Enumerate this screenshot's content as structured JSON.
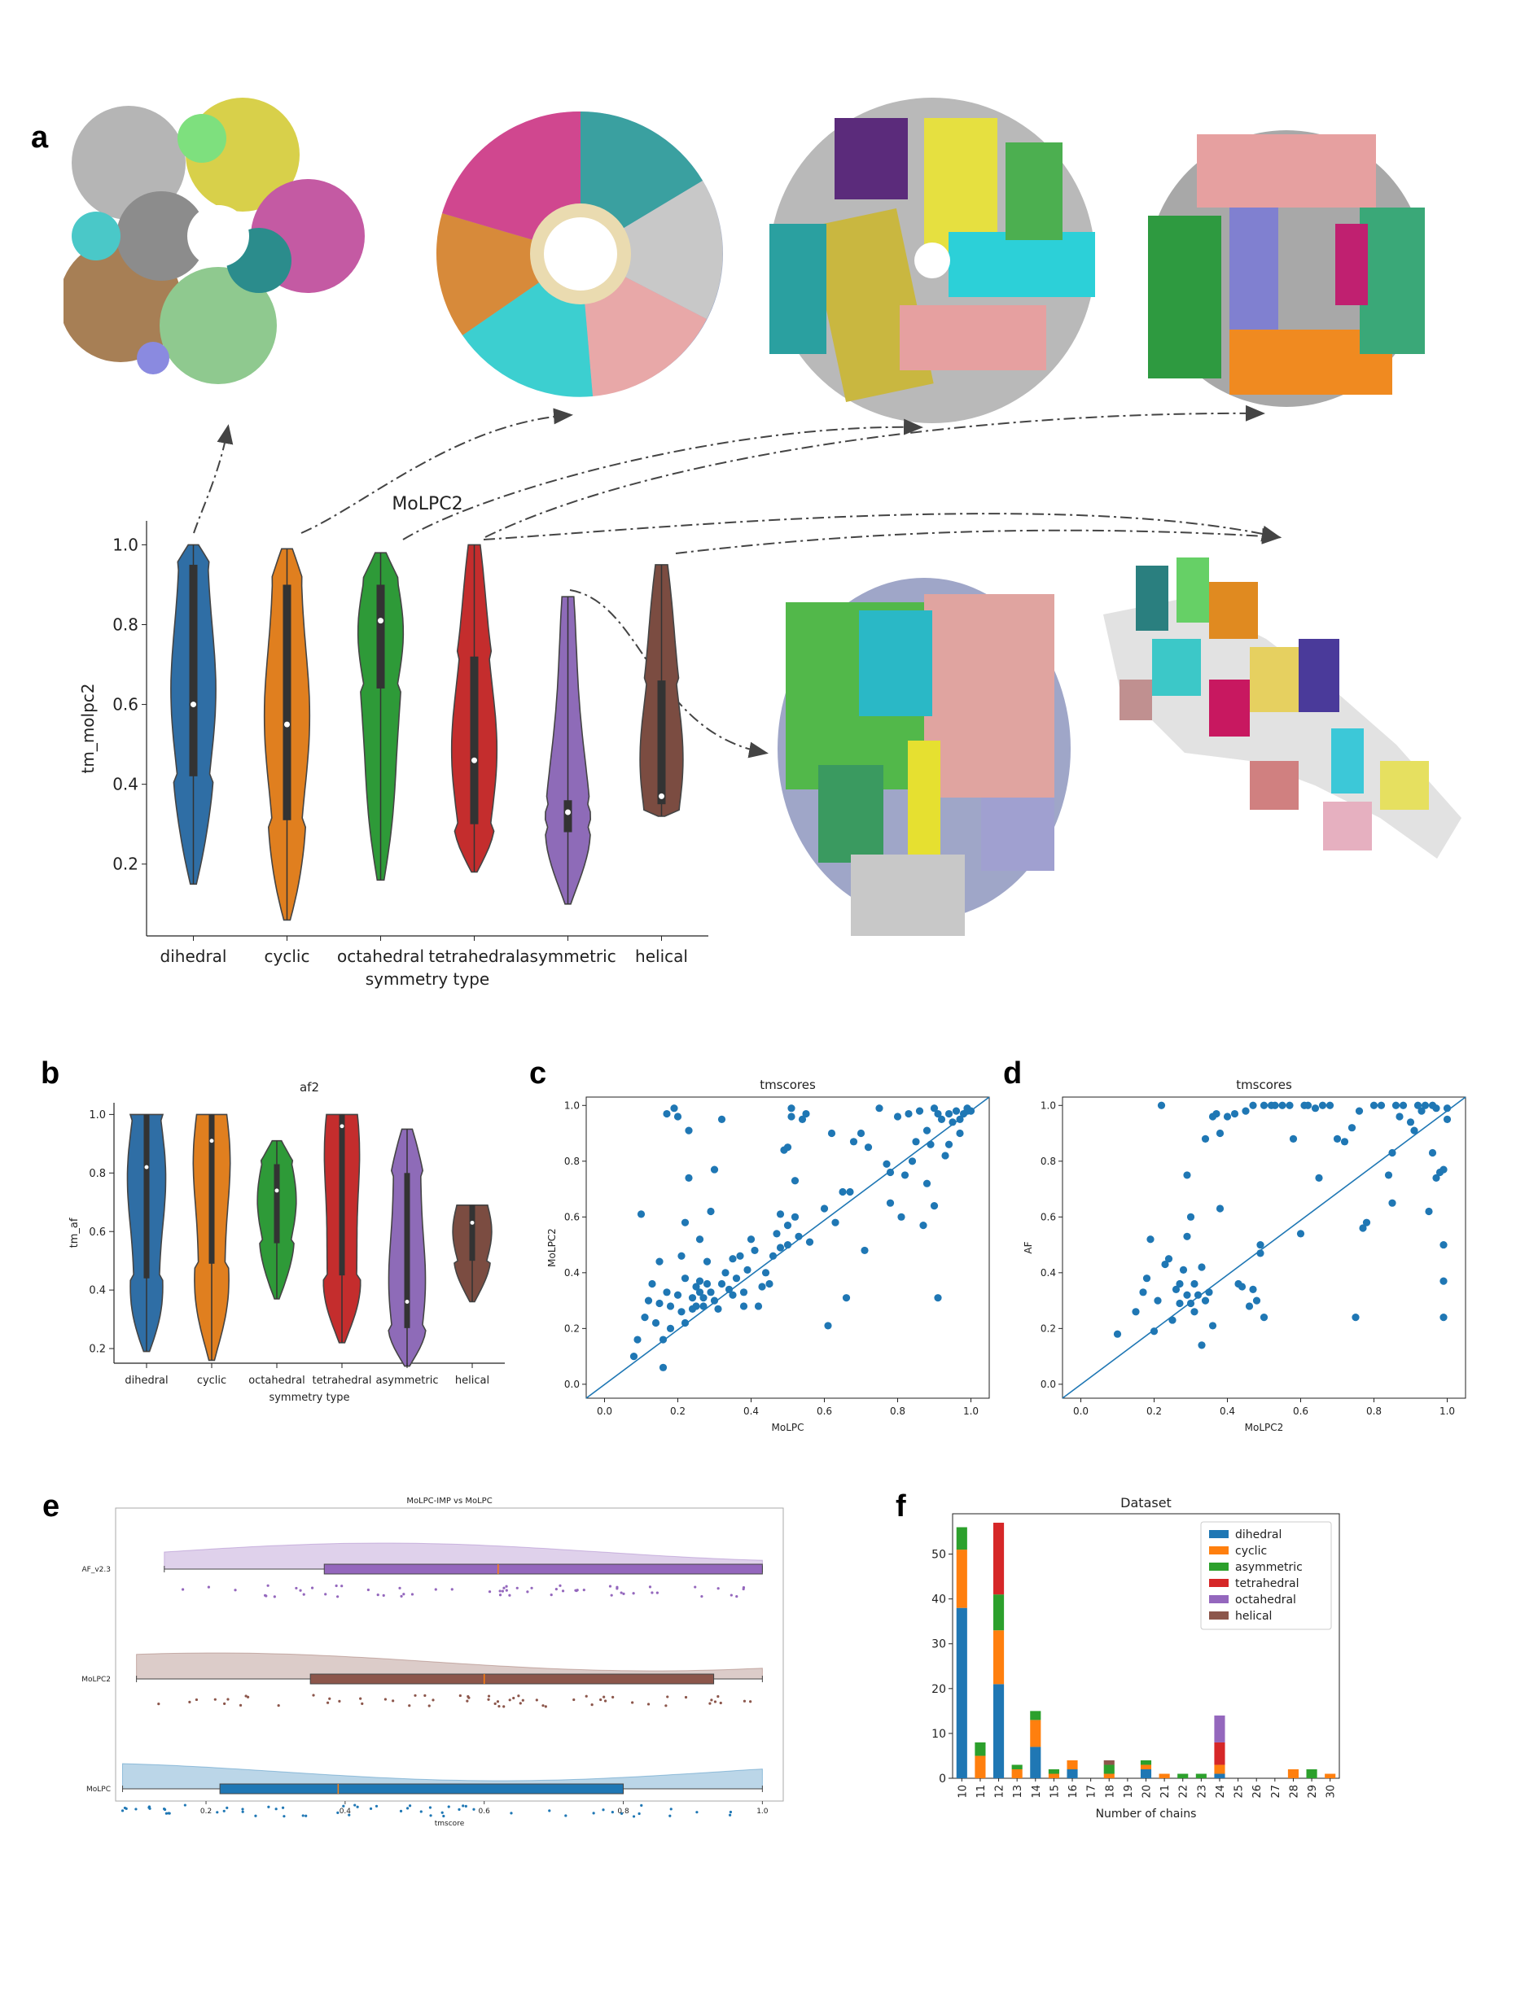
{
  "panels": {
    "a": "a",
    "b": "b",
    "c": "c",
    "d": "d",
    "e": "e",
    "f": "f"
  },
  "colors": {
    "dihedral": "#2f6ea5",
    "cyclic": "#e07f1f",
    "octahedral": "#2e9a38",
    "tetrahedral": "#c42d2d",
    "asymmetric": "#8e6bb8",
    "helical": "#7b4c41",
    "scatter": "#1f77b4",
    "bar_dihedral": "#1f77b4",
    "bar_cyclic": "#ff7f0e",
    "bar_asymmetric": "#2ca02c",
    "bar_tetrahedral": "#d62728",
    "bar_octahedral": "#9467bd",
    "bar_helical": "#8c564b",
    "e_af": "#9467bd",
    "e_molpc2": "#8c564b",
    "e_molpc": "#1f77b4"
  },
  "chart_data": [
    {
      "id": "a",
      "type": "violin",
      "title": "MoLPC2",
      "xlabel": "symmetry type",
      "ylabel": "tm_molpc2",
      "yticks": [
        "0.2",
        "0.4",
        "0.6",
        "0.8",
        "1.0"
      ],
      "ylim": [
        0.02,
        1.06
      ],
      "categories": [
        "dihedral",
        "cyclic",
        "octahedral",
        "tetrahedral",
        "asymmetric",
        "helical"
      ],
      "stats": [
        {
          "min": 0.15,
          "max": 1.0,
          "q1": 0.42,
          "median": 0.6,
          "q3": 0.95
        },
        {
          "min": 0.06,
          "max": 0.99,
          "q1": 0.31,
          "median": 0.55,
          "q3": 0.9
        },
        {
          "min": 0.16,
          "max": 0.98,
          "q1": 0.64,
          "median": 0.81,
          "q3": 0.9
        },
        {
          "min": 0.18,
          "max": 1.0,
          "q1": 0.3,
          "median": 0.46,
          "q3": 0.72
        },
        {
          "min": 0.1,
          "max": 0.87,
          "q1": 0.28,
          "median": 0.33,
          "q3": 0.36
        },
        {
          "min": 0.32,
          "max": 0.95,
          "q1": 0.35,
          "median": 0.37,
          "q3": 0.66
        }
      ]
    },
    {
      "id": "b",
      "type": "violin",
      "title": "af2",
      "xlabel": "symmetry type",
      "ylabel": "tm_af",
      "yticks": [
        "0.2",
        "0.4",
        "0.6",
        "0.8",
        "1.0"
      ],
      "ylim": [
        0.15,
        1.04
      ],
      "categories": [
        "dihedral",
        "cyclic",
        "octahedral",
        "tetrahedral",
        "asymmetric",
        "helical"
      ],
      "stats": [
        {
          "min": 0.19,
          "max": 1.0,
          "q1": 0.44,
          "median": 0.82,
          "q3": 1.0
        },
        {
          "min": 0.16,
          "max": 1.0,
          "q1": 0.49,
          "median": 0.91,
          "q3": 1.0
        },
        {
          "min": 0.37,
          "max": 0.91,
          "q1": 0.56,
          "median": 0.74,
          "q3": 0.83
        },
        {
          "min": 0.22,
          "max": 1.0,
          "q1": 0.45,
          "median": 0.96,
          "q3": 1.0
        },
        {
          "min": 0.14,
          "max": 0.95,
          "q1": 0.27,
          "median": 0.36,
          "q3": 0.8
        },
        {
          "min": 0.36,
          "max": 0.69,
          "q1": 0.5,
          "median": 0.63,
          "q3": 0.69
        }
      ]
    },
    {
      "id": "c",
      "type": "scatter",
      "title": "tmscores",
      "xlabel": "MoLPC",
      "ylabel": "MoLPC2",
      "xticks": [
        "0.0",
        "0.2",
        "0.4",
        "0.6",
        "0.8",
        "1.0"
      ],
      "yticks": [
        "0.0",
        "0.2",
        "0.4",
        "0.6",
        "0.8",
        "1.0"
      ],
      "xlim": [
        -0.05,
        1.05
      ],
      "ylim": [
        -0.05,
        1.03
      ],
      "diagonal": true,
      "points": [
        [
          0.08,
          0.1
        ],
        [
          0.09,
          0.16
        ],
        [
          0.1,
          0.61
        ],
        [
          0.11,
          0.24
        ],
        [
          0.12,
          0.3
        ],
        [
          0.13,
          0.36
        ],
        [
          0.14,
          0.22
        ],
        [
          0.15,
          0.29
        ],
        [
          0.15,
          0.44
        ],
        [
          0.16,
          0.16
        ],
        [
          0.16,
          0.06
        ],
        [
          0.17,
          0.33
        ],
        [
          0.17,
          0.97
        ],
        [
          0.18,
          0.2
        ],
        [
          0.18,
          0.28
        ],
        [
          0.19,
          0.99
        ],
        [
          0.2,
          0.32
        ],
        [
          0.2,
          0.96
        ],
        [
          0.21,
          0.26
        ],
        [
          0.21,
          0.46
        ],
        [
          0.22,
          0.22
        ],
        [
          0.22,
          0.38
        ],
        [
          0.22,
          0.58
        ],
        [
          0.23,
          0.74
        ],
        [
          0.23,
          0.91
        ],
        [
          0.24,
          0.27
        ],
        [
          0.24,
          0.31
        ],
        [
          0.25,
          0.35
        ],
        [
          0.25,
          0.28
        ],
        [
          0.26,
          0.33
        ],
        [
          0.26,
          0.52
        ],
        [
          0.26,
          0.37
        ],
        [
          0.27,
          0.31
        ],
        [
          0.27,
          0.28
        ],
        [
          0.28,
          0.36
        ],
        [
          0.28,
          0.44
        ],
        [
          0.29,
          0.33
        ],
        [
          0.29,
          0.62
        ],
        [
          0.3,
          0.77
        ],
        [
          0.3,
          0.3
        ],
        [
          0.31,
          0.27
        ],
        [
          0.32,
          0.36
        ],
        [
          0.32,
          0.95
        ],
        [
          0.33,
          0.4
        ],
        [
          0.34,
          0.34
        ],
        [
          0.35,
          0.45
        ],
        [
          0.35,
          0.32
        ],
        [
          0.36,
          0.38
        ],
        [
          0.37,
          0.46
        ],
        [
          0.38,
          0.33
        ],
        [
          0.38,
          0.28
        ],
        [
          0.39,
          0.41
        ],
        [
          0.4,
          0.52
        ],
        [
          0.41,
          0.48
        ],
        [
          0.42,
          0.28
        ],
        [
          0.43,
          0.35
        ],
        [
          0.44,
          0.4
        ],
        [
          0.45,
          0.36
        ],
        [
          0.46,
          0.46
        ],
        [
          0.47,
          0.54
        ],
        [
          0.48,
          0.49
        ],
        [
          0.48,
          0.61
        ],
        [
          0.49,
          0.84
        ],
        [
          0.5,
          0.5
        ],
        [
          0.5,
          0.57
        ],
        [
          0.5,
          0.85
        ],
        [
          0.51,
          0.96
        ],
        [
          0.51,
          0.99
        ],
        [
          0.52,
          0.6
        ],
        [
          0.52,
          0.73
        ],
        [
          0.53,
          0.53
        ],
        [
          0.54,
          0.95
        ],
        [
          0.55,
          0.97
        ],
        [
          0.56,
          0.51
        ],
        [
          0.6,
          0.63
        ],
        [
          0.61,
          0.21
        ],
        [
          0.62,
          0.9
        ],
        [
          0.63,
          0.58
        ],
        [
          0.65,
          0.69
        ],
        [
          0.66,
          0.31
        ],
        [
          0.67,
          0.69
        ],
        [
          0.68,
          0.87
        ],
        [
          0.7,
          0.9
        ],
        [
          0.71,
          0.48
        ],
        [
          0.72,
          0.85
        ],
        [
          0.75,
          0.99
        ],
        [
          0.77,
          0.79
        ],
        [
          0.78,
          0.76
        ],
        [
          0.78,
          0.65
        ],
        [
          0.8,
          0.96
        ],
        [
          0.81,
          0.6
        ],
        [
          0.82,
          0.75
        ],
        [
          0.83,
          0.97
        ],
        [
          0.84,
          0.8
        ],
        [
          0.85,
          0.87
        ],
        [
          0.86,
          0.98
        ],
        [
          0.87,
          0.57
        ],
        [
          0.88,
          0.72
        ],
        [
          0.88,
          0.91
        ],
        [
          0.89,
          0.86
        ],
        [
          0.9,
          0.64
        ],
        [
          0.9,
          0.99
        ],
        [
          0.91,
          0.97
        ],
        [
          0.91,
          0.31
        ],
        [
          0.92,
          0.95
        ],
        [
          0.93,
          0.82
        ],
        [
          0.94,
          0.86
        ],
        [
          0.94,
          0.97
        ],
        [
          0.95,
          0.94
        ],
        [
          0.96,
          0.98
        ],
        [
          0.97,
          0.9
        ],
        [
          0.97,
          0.95
        ],
        [
          0.98,
          0.97
        ],
        [
          0.99,
          0.98
        ],
        [
          0.99,
          0.99
        ],
        [
          1.0,
          0.98
        ]
      ]
    },
    {
      "id": "d",
      "type": "scatter",
      "title": "tmscores",
      "xlabel": "MoLPC2",
      "ylabel": "AF",
      "xticks": [
        "0.0",
        "0.2",
        "0.4",
        "0.6",
        "0.8",
        "1.0"
      ],
      "yticks": [
        "0.0",
        "0.2",
        "0.4",
        "0.6",
        "0.8",
        "1.0"
      ],
      "xlim": [
        -0.05,
        1.05
      ],
      "ylim": [
        -0.05,
        1.03
      ],
      "diagonal": true,
      "points": [
        [
          0.1,
          0.18
        ],
        [
          0.15,
          0.26
        ],
        [
          0.17,
          0.33
        ],
        [
          0.18,
          0.38
        ],
        [
          0.19,
          0.52
        ],
        [
          0.2,
          0.19
        ],
        [
          0.21,
          0.3
        ],
        [
          0.22,
          1.0
        ],
        [
          0.23,
          0.43
        ],
        [
          0.24,
          0.45
        ],
        [
          0.25,
          0.23
        ],
        [
          0.26,
          0.34
        ],
        [
          0.27,
          0.36
        ],
        [
          0.27,
          0.29
        ],
        [
          0.28,
          0.41
        ],
        [
          0.29,
          0.32
        ],
        [
          0.29,
          0.53
        ],
        [
          0.29,
          0.75
        ],
        [
          0.3,
          0.29
        ],
        [
          0.3,
          0.6
        ],
        [
          0.31,
          0.26
        ],
        [
          0.31,
          0.36
        ],
        [
          0.32,
          0.32
        ],
        [
          0.33,
          0.14
        ],
        [
          0.33,
          0.42
        ],
        [
          0.34,
          0.88
        ],
        [
          0.34,
          0.3
        ],
        [
          0.35,
          0.33
        ],
        [
          0.36,
          0.96
        ],
        [
          0.36,
          0.21
        ],
        [
          0.37,
          0.97
        ],
        [
          0.38,
          0.63
        ],
        [
          0.38,
          0.9
        ],
        [
          0.4,
          0.96
        ],
        [
          0.42,
          0.97
        ],
        [
          0.43,
          0.36
        ],
        [
          0.44,
          0.35
        ],
        [
          0.45,
          0.98
        ],
        [
          0.46,
          0.28
        ],
        [
          0.47,
          0.34
        ],
        [
          0.47,
          1.0
        ],
        [
          0.48,
          0.3
        ],
        [
          0.49,
          0.47
        ],
        [
          0.49,
          0.5
        ],
        [
          0.5,
          0.24
        ],
        [
          0.5,
          1.0
        ],
        [
          0.52,
          1.0
        ],
        [
          0.53,
          1.0
        ],
        [
          0.55,
          1.0
        ],
        [
          0.57,
          1.0
        ],
        [
          0.58,
          0.88
        ],
        [
          0.6,
          0.54
        ],
        [
          0.61,
          1.0
        ],
        [
          0.62,
          1.0
        ],
        [
          0.64,
          0.99
        ],
        [
          0.65,
          0.74
        ],
        [
          0.66,
          1.0
        ],
        [
          0.68,
          1.0
        ],
        [
          0.7,
          0.88
        ],
        [
          0.72,
          0.87
        ],
        [
          0.74,
          0.92
        ],
        [
          0.75,
          0.24
        ],
        [
          0.76,
          0.98
        ],
        [
          0.77,
          0.56
        ],
        [
          0.78,
          0.58
        ],
        [
          0.8,
          1.0
        ],
        [
          0.82,
          1.0
        ],
        [
          0.84,
          0.75
        ],
        [
          0.85,
          0.83
        ],
        [
          0.85,
          0.65
        ],
        [
          0.86,
          1.0
        ],
        [
          0.87,
          0.96
        ],
        [
          0.88,
          1.0
        ],
        [
          0.9,
          0.94
        ],
        [
          0.91,
          0.91
        ],
        [
          0.92,
          1.0
        ],
        [
          0.93,
          0.98
        ],
        [
          0.94,
          1.0
        ],
        [
          0.95,
          0.62
        ],
        [
          0.96,
          0.83
        ],
        [
          0.96,
          1.0
        ],
        [
          0.97,
          0.74
        ],
        [
          0.97,
          0.99
        ],
        [
          0.98,
          0.76
        ],
        [
          0.99,
          0.5
        ],
        [
          0.99,
          0.37
        ],
        [
          0.99,
          0.24
        ],
        [
          0.99,
          0.77
        ],
        [
          1.0,
          0.95
        ],
        [
          1.0,
          0.99
        ]
      ]
    },
    {
      "id": "e",
      "type": "raincloud",
      "title": "MoLPC-IMP vs MoLPC",
      "xlabel": "tmscore",
      "xticks": [
        "0.2",
        "0.4",
        "0.6",
        "0.8",
        "1.0"
      ],
      "xlim": [
        0.07,
        1.03
      ],
      "rows": [
        {
          "name": "AF_v2.3",
          "min": 0.14,
          "q1": 0.37,
          "median": 0.62,
          "q3": 1.0,
          "max": 1.0
        },
        {
          "name": "MoLPC2",
          "min": 0.1,
          "q1": 0.35,
          "median": 0.6,
          "q3": 0.93,
          "max": 1.0
        },
        {
          "name": "MoLPC",
          "min": 0.08,
          "q1": 0.22,
          "median": 0.39,
          "q3": 0.8,
          "max": 1.0
        }
      ]
    },
    {
      "id": "f",
      "type": "stacked_bar",
      "title": "Dataset",
      "xlabel": "Number of chains",
      "yticks": [
        "0",
        "10",
        "20",
        "30",
        "40",
        "50"
      ],
      "ylim": [
        0,
        59
      ],
      "categories": [
        "10",
        "11",
        "12",
        "13",
        "14",
        "15",
        "16",
        "17",
        "18",
        "19",
        "20",
        "21",
        "22",
        "23",
        "24",
        "25",
        "26",
        "27",
        "28",
        "29",
        "30"
      ],
      "series": [
        {
          "name": "dihedral",
          "values": [
            38,
            0,
            21,
            0,
            7,
            0,
            2,
            0,
            0,
            0,
            2,
            0,
            0,
            0,
            1,
            0,
            0,
            0,
            0,
            0,
            0
          ]
        },
        {
          "name": "cyclic",
          "values": [
            13,
            5,
            12,
            2,
            6,
            1,
            2,
            0,
            1,
            0,
            1,
            1,
            0,
            0,
            2,
            0,
            0,
            0,
            2,
            0,
            1
          ]
        },
        {
          "name": "asymmetric",
          "values": [
            5,
            3,
            8,
            1,
            2,
            1,
            0,
            0,
            2,
            0,
            1,
            0,
            1,
            1,
            0,
            0,
            0,
            0,
            0,
            2,
            0
          ]
        },
        {
          "name": "tetrahedral",
          "values": [
            0,
            0,
            16,
            0,
            0,
            0,
            0,
            0,
            0,
            0,
            0,
            0,
            0,
            0,
            5,
            0,
            0,
            0,
            0,
            0,
            0
          ]
        },
        {
          "name": "octahedral",
          "values": [
            0,
            0,
            0,
            0,
            0,
            0,
            0,
            0,
            0,
            0,
            0,
            0,
            0,
            0,
            6,
            0,
            0,
            0,
            0,
            0,
            0
          ]
        },
        {
          "name": "helical",
          "values": [
            0,
            0,
            0,
            0,
            0,
            0,
            0,
            0,
            1,
            0,
            0,
            0,
            0,
            0,
            0,
            0,
            0,
            0,
            0,
            0,
            0
          ]
        }
      ]
    }
  ]
}
